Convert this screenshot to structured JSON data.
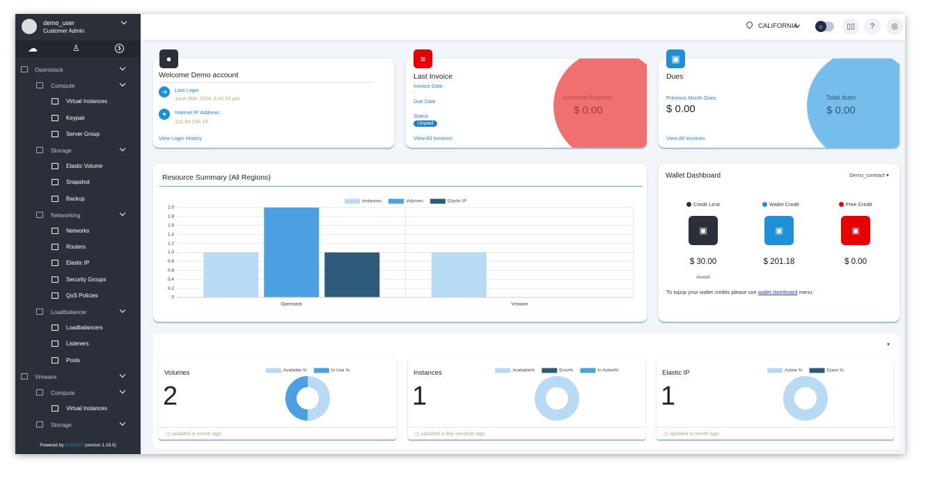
{
  "sidebar": {
    "user": "demo_user",
    "role": "Customer Admin",
    "menu": [
      {
        "label": "Openstack",
        "children": [
          {
            "label": "Compute",
            "children": [
              {
                "label": "Virtual Instances"
              },
              {
                "label": "Keypair"
              },
              {
                "label": "Server Group"
              }
            ]
          },
          {
            "label": "Storage",
            "children": [
              {
                "label": "Elastic Volume"
              },
              {
                "label": "Snapshot"
              },
              {
                "label": "Backup"
              }
            ]
          },
          {
            "label": "Networking",
            "children": [
              {
                "label": "Networks"
              },
              {
                "label": "Routers"
              },
              {
                "label": "Elastic IP"
              },
              {
                "label": "Security Groups"
              },
              {
                "label": "QoS Policies"
              }
            ]
          },
          {
            "label": "Loadbalancer",
            "children": [
              {
                "label": "Loadbalancers"
              },
              {
                "label": "Listeners"
              },
              {
                "label": "Pools"
              }
            ]
          }
        ]
      },
      {
        "label": "Vmware",
        "children": [
          {
            "label": "Compute",
            "children": [
              {
                "label": "Virtual Instances"
              }
            ]
          },
          {
            "label": "Storage",
            "children": []
          }
        ]
      }
    ],
    "footer": {
      "prefix": "Powered by",
      "brand": "CLOUD7",
      "version": "(version 1.19.0)"
    }
  },
  "topbar": {
    "region": "CALIFORNIA"
  },
  "welcome": {
    "title": "Welcome Demo account",
    "last_login_label": "Last Login",
    "last_login": "June 26th 2024, 6:42:20 pm",
    "ip_label": "Internet IP Address",
    "ip": "110.93.236.19",
    "link": "View Login History"
  },
  "invoice": {
    "title": "Last Invoice",
    "date_label": "Invoice Date",
    "date": "-",
    "due_label": "Due Date",
    "status_label": "Status",
    "status": "Unpaid",
    "link": "View All Invoices",
    "amount_label": "Invoiced Amount",
    "amount": "$ 0.00"
  },
  "dues": {
    "title": "Dues",
    "prev_label": "Previous Month Dues",
    "prev": "$ 0.00",
    "link": "View All Invoices",
    "total_label": "Total dues",
    "total": "$ 0.00"
  },
  "wallet": {
    "title": "Wallet Dashboard",
    "contract": "Demo_contract",
    "items": [
      {
        "label": "Credit Limit",
        "amount": "$ 30.00",
        "note": "/month",
        "color": "#2b2f3a"
      },
      {
        "label": "Wallet Credit",
        "amount": "$ 201.18",
        "color": "#1e90d8"
      },
      {
        "label": "Free Credit",
        "amount": "$ 0.00",
        "color": "#e60000"
      }
    ],
    "note_start": "'To topup your wallet credits please use",
    "note_link": "wallet dashboard",
    "note_end": "menu.'"
  },
  "chart_data": [
    {
      "type": "bar",
      "title": "Resource Summary (All Regions)",
      "categories": [
        "Openstack",
        "Vmware"
      ],
      "series": [
        {
          "name": "Instances",
          "color": "#b8daf2",
          "values": [
            1,
            1
          ]
        },
        {
          "name": "Volumes",
          "color": "#4aa0e0",
          "values": [
            2,
            0
          ]
        },
        {
          "name": "Elastic IP",
          "color": "#2d5a7b",
          "values": [
            1,
            0
          ]
        }
      ],
      "ylim": [
        0,
        2
      ],
      "yticks": [
        0,
        0.2,
        0.4,
        0.6,
        0.8,
        {
          "value": 1,
          "label": "1.0"
        },
        1.2,
        1.4,
        1.6,
        1.8,
        {
          "value": 2,
          "label": "2.0"
        }
      ],
      "grid": true
    },
    {
      "type": "donut",
      "title": "Volumes",
      "total": 2,
      "footer": "updated a month ago",
      "categories": [
        "Available %",
        "In Use %"
      ],
      "values": [
        50,
        50
      ],
      "colors": [
        "#b8daf2",
        "#4aa0e0"
      ]
    },
    {
      "type": "donut",
      "title": "Instances",
      "total": 1,
      "footer": "updated a few seconds ago",
      "categories": [
        "Available%",
        "Error%",
        "In Active%"
      ],
      "values": [
        100,
        0,
        0
      ],
      "colors": [
        "#b8daf2",
        "#2d5a7b",
        "#4aa0e0"
      ]
    },
    {
      "type": "donut",
      "title": "Elastic IP",
      "total": 1,
      "footer": "updated a month ago",
      "categories": [
        "Active %",
        "Down %"
      ],
      "values": [
        100,
        0
      ],
      "colors": [
        "#b8daf2",
        "#2d5a7b"
      ]
    }
  ]
}
